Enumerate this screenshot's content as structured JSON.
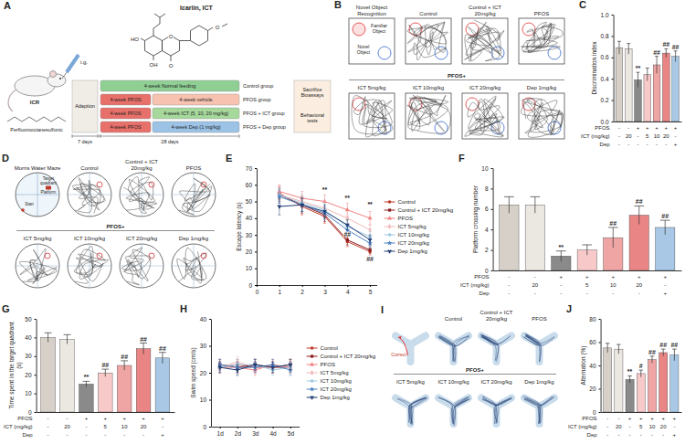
{
  "panels": {
    "A": {
      "letter": "A",
      "compound": "Icariin, ICT",
      "structure_labels": [
        "HO",
        "OH",
        "O",
        "O",
        "O"
      ],
      "route": "i.g.",
      "animal": "ICR",
      "chemical": "Perfluorooctanesulfonic",
      "adaption": "Adaption",
      "adaption_time": "7 days",
      "treatment_time": "28 days",
      "endpoint": "Sacrifice Bioassays",
      "tests": "Behavioral tests",
      "groups": [
        {
          "steps": [
            "4-week Normal feeding"
          ],
          "group": "Control group"
        },
        {
          "steps": [
            "4-week PFOS",
            "4-week vehicle"
          ],
          "group": "PFOS group"
        },
        {
          "steps": [
            "4-week PFOS",
            "4-week ICT (5, 10, 20 mg/kg)"
          ],
          "group": "PFOS + ICT group"
        },
        {
          "steps": [
            "4-week PFOS",
            "4-week Dep (1 mg/kg)"
          ],
          "group": "PFOS + Dep group"
        }
      ]
    },
    "B": {
      "letter": "B",
      "title": "Novel Object Recognition",
      "familiar": "Familiar Object",
      "novel": "Novel Object",
      "top_groups": [
        "Control",
        "Control + ICT 20mg/kg",
        "PFOS"
      ],
      "bottom_head": "PFOS+",
      "bottom_groups": [
        "ICT 5mg/kg",
        "ICT 10mg/kg",
        "ICT 20mg/kg",
        "Dep 1mg/kg"
      ]
    },
    "D": {
      "letter": "D",
      "title": "Morris Water Maze",
      "target": "Target quadrant",
      "platform": "Platform",
      "start": "Start",
      "top_groups": [
        "Control",
        "Control + ICT 20mg/kg",
        "PFOS"
      ],
      "bottom_head": "PFOS+",
      "bottom_groups": [
        "ICT 5mg/kg",
        "ICT 10mg/kg",
        "ICT 20mg/kg",
        "Dep 1mg/kg"
      ]
    },
    "I": {
      "letter": "I",
      "correct": "Correct",
      "top_groups": [
        "Control",
        "Control + ICT 20mg/kg",
        "PFOS"
      ],
      "bottom_head": "PFOS+",
      "bottom_groups": [
        "ICT 5mg/kg",
        "ICT 10mg/kg",
        "ICT 20mg/kg",
        "Dep 1mg/kg"
      ]
    }
  },
  "chart_data": [
    {
      "type": "bar",
      "panel_label": "C",
      "y_label": "Discrimination index",
      "categories": [
        null,
        null,
        null,
        null,
        null,
        null,
        null
      ],
      "values": [
        0.69,
        0.68,
        0.39,
        0.44,
        0.53,
        0.64,
        0.61
      ],
      "errors": [
        0.06,
        0.05,
        0.07,
        0.06,
        0.08,
        0.04,
        0.05
      ],
      "significance": [
        null,
        null,
        "**",
        null,
        "##",
        "##",
        "##"
      ],
      "colors": [
        "#d6d0c8",
        "#ebe7e1",
        "#8a8a8a",
        "#f7c9c9",
        "#f0a5a5",
        "#e98585",
        "#a8c8e6"
      ],
      "ylim": [
        0,
        1
      ],
      "yticks": [
        {
          "value": 0,
          "label": "0.0"
        },
        0.2,
        0.4,
        0.6,
        0.8,
        {
          "value": 1,
          "label": "1.0"
        }
      ],
      "design": [
        {
          "label": "PFOS",
          "values": [
            "-",
            "-",
            "+",
            "+",
            "+",
            "+",
            "+"
          ]
        },
        {
          "label": "ICT (mg/kg)",
          "values": [
            "-",
            "20",
            "-",
            "5",
            "10",
            "20",
            "-"
          ]
        },
        {
          "label": "Dep",
          "values": [
            "-",
            "-",
            "-",
            "-",
            "-",
            "-",
            "+"
          ]
        }
      ]
    },
    {
      "type": "line",
      "panel_label": "E",
      "y_label": "Escape latency (s)",
      "x": [
        1,
        2,
        3,
        4,
        5
      ],
      "xlim": [
        0,
        5.3
      ],
      "xticks": [
        0,
        1,
        2,
        3,
        4,
        5
      ],
      "ylim": [
        0,
        70
      ],
      "yticks": [
        0,
        10,
        20,
        30,
        40,
        50,
        60,
        70
      ],
      "legend": "right",
      "series": [
        {
          "name": "Control",
          "color": "#c0392b",
          "marker": "circle",
          "values": [
            55,
            47,
            41,
            26,
            20
          ],
          "errors": [
            4,
            5,
            4,
            3,
            2
          ]
        },
        {
          "name": "Control + ICT 20mg/kg",
          "color": "#8b1a1a",
          "marker": "square",
          "values": [
            54,
            48,
            42,
            27,
            21
          ],
          "errors": [
            4,
            5,
            4,
            3,
            2
          ]
        },
        {
          "name": "PFOS",
          "color": "#f08080",
          "marker": "triangle",
          "values": [
            56,
            52,
            50,
            45,
            40
          ],
          "errors": [
            4,
            4,
            4,
            4,
            4
          ]
        },
        {
          "name": "ICT 5mg/kg",
          "color": "#f2b6b6",
          "marker": "diamond",
          "values": [
            54,
            50,
            46,
            40,
            33
          ],
          "errors": [
            5,
            4,
            4,
            4,
            3
          ]
        },
        {
          "name": "ICT 10mg/kg",
          "color": "#9ecae1",
          "marker": "cross",
          "values": [
            54,
            49,
            45,
            35,
            29
          ],
          "errors": [
            4,
            5,
            4,
            4,
            3
          ]
        },
        {
          "name": "ICT 20mg/kg",
          "color": "#4a7fc1",
          "marker": "star",
          "values": [
            53,
            48,
            43,
            33,
            25
          ],
          "errors": [
            4,
            4,
            4,
            3,
            3
          ]
        },
        {
          "name": "Dep 1mg/kg",
          "color": "#1f3b73",
          "marker": "wye",
          "values": [
            47,
            48,
            44,
            36,
            27
          ],
          "errors": [
            5,
            4,
            4,
            3,
            3
          ]
        }
      ],
      "annotations": [
        {
          "x": 3,
          "y": 56,
          "label": "**"
        },
        {
          "x": 4,
          "y": 51,
          "label": "**"
        },
        {
          "x": 5,
          "y": 47,
          "label": "**"
        },
        {
          "x": 4,
          "y": 29,
          "label": "##"
        },
        {
          "x": 5,
          "y": 14,
          "label": "##"
        }
      ]
    },
    {
      "type": "bar",
      "panel_label": "F",
      "y_label": "Platform crossing number",
      "categories": [
        null,
        null,
        null,
        null,
        null,
        null,
        null
      ],
      "values": [
        6.4,
        6.4,
        1.4,
        2.0,
        3.2,
        5.4,
        4.2
      ],
      "errors": [
        0.8,
        0.8,
        0.5,
        0.5,
        1.0,
        0.9,
        0.7
      ],
      "significance": [
        null,
        null,
        "**",
        null,
        "##",
        "##",
        "##"
      ],
      "colors": [
        "#d6d0c8",
        "#ebe7e1",
        "#8a8a8a",
        "#f7c9c9",
        "#f0a5a5",
        "#e98585",
        "#a8c8e6"
      ],
      "ylim": [
        0,
        10
      ],
      "yticks": [
        0,
        2,
        4,
        6,
        8,
        10
      ],
      "design": [
        {
          "label": "PFOS",
          "values": [
            "-",
            "-",
            "+",
            "+",
            "+",
            "+",
            "+"
          ]
        },
        {
          "label": "ICT (mg/kg)",
          "values": [
            "-",
            "20",
            "-",
            "5",
            "10",
            "20",
            "-"
          ]
        },
        {
          "label": "Dep",
          "values": [
            "-",
            "-",
            "-",
            "-",
            "-",
            "-",
            "+"
          ]
        }
      ]
    },
    {
      "type": "bar",
      "panel_label": "G",
      "y_label": "Time spent in the target quadrant (s)",
      "categories": [
        null,
        null,
        null,
        null,
        null,
        null,
        null
      ],
      "values": [
        40,
        39,
        15,
        21,
        25,
        34,
        29
      ],
      "errors": [
        2.5,
        2.5,
        1.5,
        2,
        2.5,
        3,
        3
      ],
      "significance": [
        null,
        null,
        "**",
        "##",
        "##",
        "##",
        "##"
      ],
      "colors": [
        "#d6d0c8",
        "#ebe7e1",
        "#8a8a8a",
        "#f7c9c9",
        "#f0a5a5",
        "#e98585",
        "#a8c8e6"
      ],
      "ylim": [
        0,
        50
      ],
      "yticks": [
        0,
        10,
        20,
        30,
        40,
        50
      ],
      "design": [
        {
          "label": "PFOS",
          "values": [
            "-",
            "-",
            "+",
            "+",
            "+",
            "+",
            "+"
          ]
        },
        {
          "label": "ICT (mg/kg)",
          "values": [
            "-",
            "20",
            "-",
            "5",
            "10",
            "20",
            "-"
          ]
        },
        {
          "label": "Dep",
          "values": [
            "-",
            "-",
            "-",
            "-",
            "-",
            "-",
            "+"
          ]
        }
      ]
    },
    {
      "type": "line",
      "panel_label": "H",
      "y_label": "Swim speed (cm/s)",
      "categories": [
        "1d",
        "2d",
        "3d",
        "4d",
        "5d"
      ],
      "ylim": [
        0,
        40
      ],
      "yticks": [
        0,
        10,
        20,
        30,
        40
      ],
      "legend": "right",
      "series": [
        {
          "name": "Control",
          "color": "#c0392b",
          "marker": "circle",
          "values": [
            22,
            23,
            22,
            22,
            22
          ],
          "errors": [
            2,
            2,
            2,
            2,
            2
          ]
        },
        {
          "name": "Control + ICT 20mg/kg",
          "color": "#8b1a1a",
          "marker": "square",
          "values": [
            23,
            22,
            23,
            22,
            23
          ],
          "errors": [
            2,
            2,
            2,
            2,
            2
          ]
        },
        {
          "name": "PFOS",
          "color": "#f08080",
          "marker": "triangle",
          "values": [
            22,
            22,
            21,
            23,
            22
          ],
          "errors": [
            2,
            2,
            2,
            2,
            2
          ]
        },
        {
          "name": "ICT 5mg/kg",
          "color": "#f2b6b6",
          "marker": "diamond",
          "values": [
            22,
            24,
            22,
            22,
            23
          ],
          "errors": [
            2,
            2,
            2,
            2,
            2
          ]
        },
        {
          "name": "ICT 10mg/kg",
          "color": "#9ecae1",
          "marker": "cross",
          "values": [
            22,
            23,
            23,
            21,
            22
          ],
          "errors": [
            2,
            2,
            2,
            2,
            2
          ]
        },
        {
          "name": "ICT 20mg/kg",
          "color": "#4a7fc1",
          "marker": "star",
          "values": [
            23,
            22,
            22,
            23,
            21
          ],
          "errors": [
            2,
            2,
            2,
            2,
            2
          ]
        },
        {
          "name": "Dep 1mg/kg",
          "color": "#1f3b73",
          "marker": "wye",
          "values": [
            22,
            21,
            23,
            22,
            23
          ],
          "errors": [
            2,
            2,
            2,
            2,
            2
          ]
        }
      ]
    },
    {
      "type": "bar",
      "panel_label": "J",
      "y_label": "Alternation (%)",
      "categories": [
        null,
        null,
        null,
        null,
        null,
        null,
        null
      ],
      "values": [
        55,
        54,
        28,
        33,
        45,
        51,
        49
      ],
      "errors": [
        4,
        4,
        3,
        3,
        3,
        3,
        5
      ],
      "significance": [
        null,
        null,
        "**",
        "#",
        "##",
        "##",
        "##"
      ],
      "colors": [
        "#d6d0c8",
        "#ebe7e1",
        "#8a8a8a",
        "#f7c9c9",
        "#f0a5a5",
        "#e98585",
        "#a8c8e6"
      ],
      "ylim": [
        0,
        80
      ],
      "yticks": [
        0,
        20,
        40,
        60,
        80
      ],
      "design": [
        {
          "label": "PFOS",
          "values": [
            "-",
            "-",
            "+",
            "+",
            "+",
            "+",
            "+"
          ]
        },
        {
          "label": "ICT (mg/kg)",
          "values": [
            "-",
            "20",
            "-",
            "5",
            "10",
            "20",
            "-"
          ]
        },
        {
          "label": "Dep",
          "values": [
            "-",
            "-",
            "-",
            "-",
            "-",
            "-",
            "+"
          ]
        }
      ]
    }
  ]
}
